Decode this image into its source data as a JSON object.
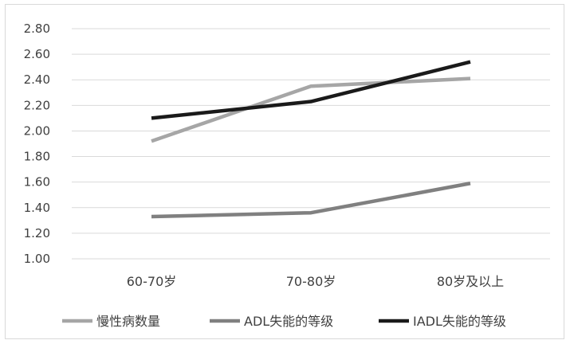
{
  "chart_data": {
    "type": "line",
    "categories": [
      "60-70岁",
      "70-80岁",
      "80岁及以上"
    ],
    "series": [
      {
        "name": "慢性病数量",
        "values": [
          1.92,
          2.35,
          2.41
        ],
        "color": "#a6a6a6"
      },
      {
        "name": "ADL失能的等级",
        "values": [
          1.33,
          1.36,
          1.59
        ],
        "color": "#808080"
      },
      {
        "name": "IADL失能的等级",
        "values": [
          2.1,
          2.23,
          2.54
        ],
        "color": "#1a1a1a"
      }
    ],
    "y_ticks": [
      "1.00",
      "1.20",
      "1.40",
      "1.60",
      "1.80",
      "2.00",
      "2.20",
      "2.40",
      "2.60",
      "2.80"
    ],
    "ylim": [
      1.0,
      2.8
    ],
    "grid": true,
    "legend_position": "bottom",
    "gridline_color": "#d9d9d9"
  }
}
